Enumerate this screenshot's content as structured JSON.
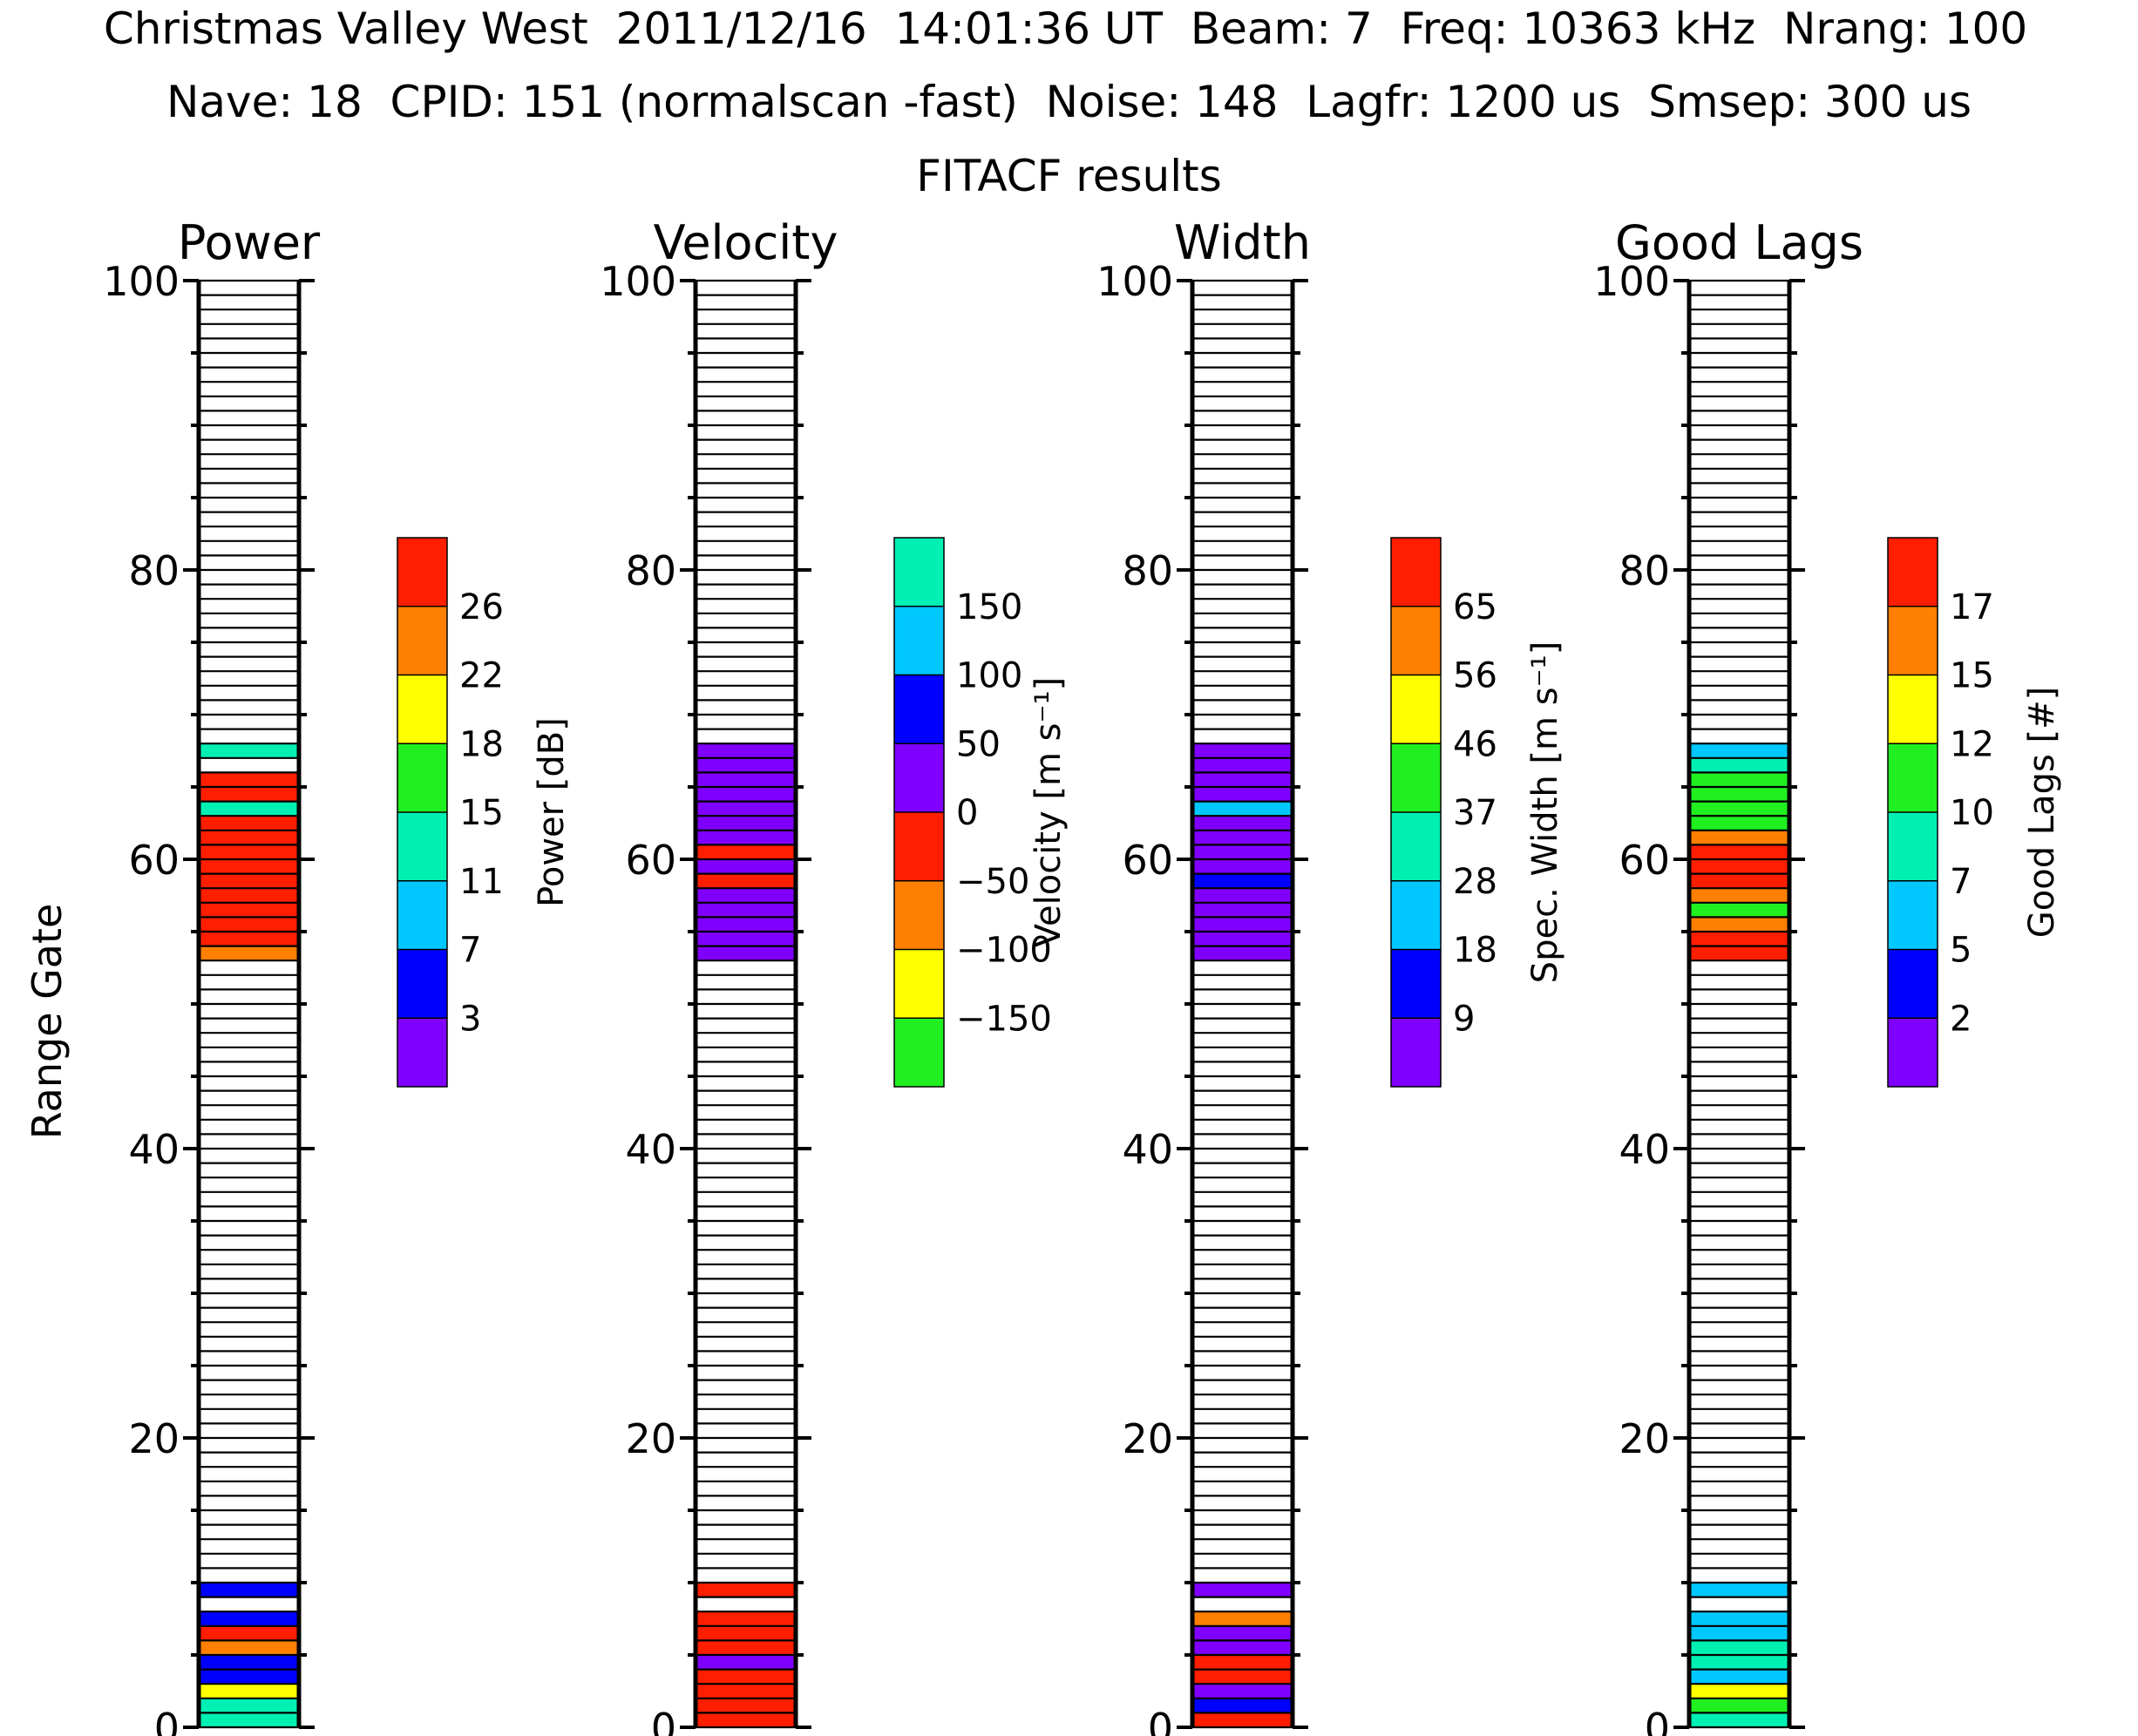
{
  "header": {
    "line1": "Christmas Valley West  2011/12/16  14:01:36 UT  Beam: 7  Freq: 10363 kHz  Nrang: 100",
    "line2": "Nave: 18  CPID: 151 (normalscan -fast)  Noise: 148  Lagfr: 1200 us  Smsep: 300 us",
    "line3": "FITACF results"
  },
  "colors": {
    "purple": "#8000ff",
    "blue": "#0000ff",
    "cyan": "#00c8ff",
    "teal": "#00f0b4",
    "green": "#20f020",
    "yellow": "#ffff00",
    "orange": "#ff8000",
    "red": "#ff1e00"
  },
  "chart_data": [
    {
      "type": "bar",
      "title": "Power",
      "ylabel": "Range Gate",
      "ylim": [
        0,
        100
      ],
      "yticks": [
        "0",
        "20",
        "40",
        "60",
        "80",
        "100"
      ],
      "nrang": 100,
      "colorbar": {
        "label": "Power [dB]",
        "colors": [
          "purple",
          "blue",
          "cyan",
          "teal",
          "green",
          "yellow",
          "orange",
          "red"
        ],
        "ticks": [
          "3",
          "7",
          "11",
          "15",
          "18",
          "22",
          "26"
        ]
      },
      "gates": [
        {
          "gate": 0,
          "color": "teal"
        },
        {
          "gate": 1,
          "color": "teal"
        },
        {
          "gate": 2,
          "color": "yellow"
        },
        {
          "gate": 3,
          "color": "blue"
        },
        {
          "gate": 4,
          "color": "blue"
        },
        {
          "gate": 5,
          "color": "orange"
        },
        {
          "gate": 6,
          "color": "red"
        },
        {
          "gate": 7,
          "color": "blue"
        },
        {
          "gate": 9,
          "color": "blue"
        },
        {
          "gate": 53,
          "color": "orange"
        },
        {
          "gate": 54,
          "color": "red"
        },
        {
          "gate": 55,
          "color": "red"
        },
        {
          "gate": 56,
          "color": "red"
        },
        {
          "gate": 57,
          "color": "red"
        },
        {
          "gate": 58,
          "color": "red"
        },
        {
          "gate": 59,
          "color": "red"
        },
        {
          "gate": 60,
          "color": "red"
        },
        {
          "gate": 61,
          "color": "red"
        },
        {
          "gate": 62,
          "color": "red"
        },
        {
          "gate": 63,
          "color": "teal"
        },
        {
          "gate": 64,
          "color": "red"
        },
        {
          "gate": 65,
          "color": "red"
        },
        {
          "gate": 67,
          "color": "teal"
        }
      ]
    },
    {
      "type": "bar",
      "title": "Velocity",
      "ylim": [
        0,
        100
      ],
      "yticks": [
        "0",
        "20",
        "40",
        "60",
        "80",
        "100"
      ],
      "nrang": 100,
      "colorbar": {
        "label": "Velocity [m s⁻¹]",
        "colors": [
          "green",
          "yellow",
          "orange",
          "red",
          "purple",
          "blue",
          "cyan",
          "teal"
        ],
        "ticks": [
          "−150",
          "−100",
          "−50",
          "0",
          "50",
          "100",
          "150"
        ]
      },
      "gates": [
        {
          "gate": 0,
          "color": "red"
        },
        {
          "gate": 1,
          "color": "red"
        },
        {
          "gate": 2,
          "color": "red"
        },
        {
          "gate": 3,
          "color": "red"
        },
        {
          "gate": 4,
          "color": "purple"
        },
        {
          "gate": 5,
          "color": "red"
        },
        {
          "gate": 6,
          "color": "red"
        },
        {
          "gate": 7,
          "color": "red"
        },
        {
          "gate": 9,
          "color": "red"
        },
        {
          "gate": 53,
          "color": "purple"
        },
        {
          "gate": 54,
          "color": "purple"
        },
        {
          "gate": 55,
          "color": "purple"
        },
        {
          "gate": 56,
          "color": "purple"
        },
        {
          "gate": 57,
          "color": "purple"
        },
        {
          "gate": 58,
          "color": "red"
        },
        {
          "gate": 59,
          "color": "purple"
        },
        {
          "gate": 60,
          "color": "red"
        },
        {
          "gate": 61,
          "color": "purple"
        },
        {
          "gate": 62,
          "color": "purple"
        },
        {
          "gate": 63,
          "color": "purple"
        },
        {
          "gate": 64,
          "color": "purple"
        },
        {
          "gate": 65,
          "color": "purple"
        },
        {
          "gate": 66,
          "color": "purple"
        },
        {
          "gate": 67,
          "color": "purple"
        }
      ]
    },
    {
      "type": "bar",
      "title": "Width",
      "ylim": [
        0,
        100
      ],
      "yticks": [
        "0",
        "20",
        "40",
        "60",
        "80",
        "100"
      ],
      "nrang": 100,
      "colorbar": {
        "label": "Spec. Width [m s⁻¹]",
        "colors": [
          "purple",
          "blue",
          "cyan",
          "teal",
          "green",
          "yellow",
          "orange",
          "red"
        ],
        "ticks": [
          "9",
          "18",
          "28",
          "37",
          "46",
          "56",
          "65"
        ]
      },
      "gates": [
        {
          "gate": 0,
          "color": "red"
        },
        {
          "gate": 1,
          "color": "blue"
        },
        {
          "gate": 2,
          "color": "purple"
        },
        {
          "gate": 3,
          "color": "red"
        },
        {
          "gate": 4,
          "color": "red"
        },
        {
          "gate": 5,
          "color": "purple"
        },
        {
          "gate": 6,
          "color": "purple"
        },
        {
          "gate": 7,
          "color": "orange"
        },
        {
          "gate": 9,
          "color": "purple"
        },
        {
          "gate": 53,
          "color": "purple"
        },
        {
          "gate": 54,
          "color": "purple"
        },
        {
          "gate": 55,
          "color": "purple"
        },
        {
          "gate": 56,
          "color": "purple"
        },
        {
          "gate": 57,
          "color": "purple"
        },
        {
          "gate": 58,
          "color": "blue"
        },
        {
          "gate": 59,
          "color": "purple"
        },
        {
          "gate": 60,
          "color": "purple"
        },
        {
          "gate": 61,
          "color": "purple"
        },
        {
          "gate": 62,
          "color": "purple"
        },
        {
          "gate": 63,
          "color": "cyan"
        },
        {
          "gate": 64,
          "color": "purple"
        },
        {
          "gate": 65,
          "color": "purple"
        },
        {
          "gate": 66,
          "color": "purple"
        },
        {
          "gate": 67,
          "color": "purple"
        }
      ]
    },
    {
      "type": "bar",
      "title": "Good Lags",
      "ylim": [
        0,
        100
      ],
      "yticks": [
        "0",
        "20",
        "40",
        "60",
        "80",
        "100"
      ],
      "nrang": 100,
      "colorbar": {
        "label": "Good Lags [#]",
        "colors": [
          "purple",
          "blue",
          "cyan",
          "teal",
          "green",
          "yellow",
          "orange",
          "red"
        ],
        "ticks": [
          "2",
          "5",
          "7",
          "10",
          "12",
          "15",
          "17"
        ]
      },
      "gates": [
        {
          "gate": 0,
          "color": "teal"
        },
        {
          "gate": 1,
          "color": "green"
        },
        {
          "gate": 2,
          "color": "yellow"
        },
        {
          "gate": 3,
          "color": "cyan"
        },
        {
          "gate": 4,
          "color": "teal"
        },
        {
          "gate": 5,
          "color": "teal"
        },
        {
          "gate": 6,
          "color": "cyan"
        },
        {
          "gate": 7,
          "color": "cyan"
        },
        {
          "gate": 9,
          "color": "cyan"
        },
        {
          "gate": 53,
          "color": "red"
        },
        {
          "gate": 54,
          "color": "red"
        },
        {
          "gate": 55,
          "color": "orange"
        },
        {
          "gate": 56,
          "color": "green"
        },
        {
          "gate": 57,
          "color": "orange"
        },
        {
          "gate": 58,
          "color": "red"
        },
        {
          "gate": 59,
          "color": "red"
        },
        {
          "gate": 60,
          "color": "red"
        },
        {
          "gate": 61,
          "color": "orange"
        },
        {
          "gate": 62,
          "color": "green"
        },
        {
          "gate": 63,
          "color": "green"
        },
        {
          "gate": 64,
          "color": "green"
        },
        {
          "gate": 65,
          "color": "green"
        },
        {
          "gate": 66,
          "color": "teal"
        },
        {
          "gate": 67,
          "color": "cyan"
        }
      ]
    }
  ]
}
